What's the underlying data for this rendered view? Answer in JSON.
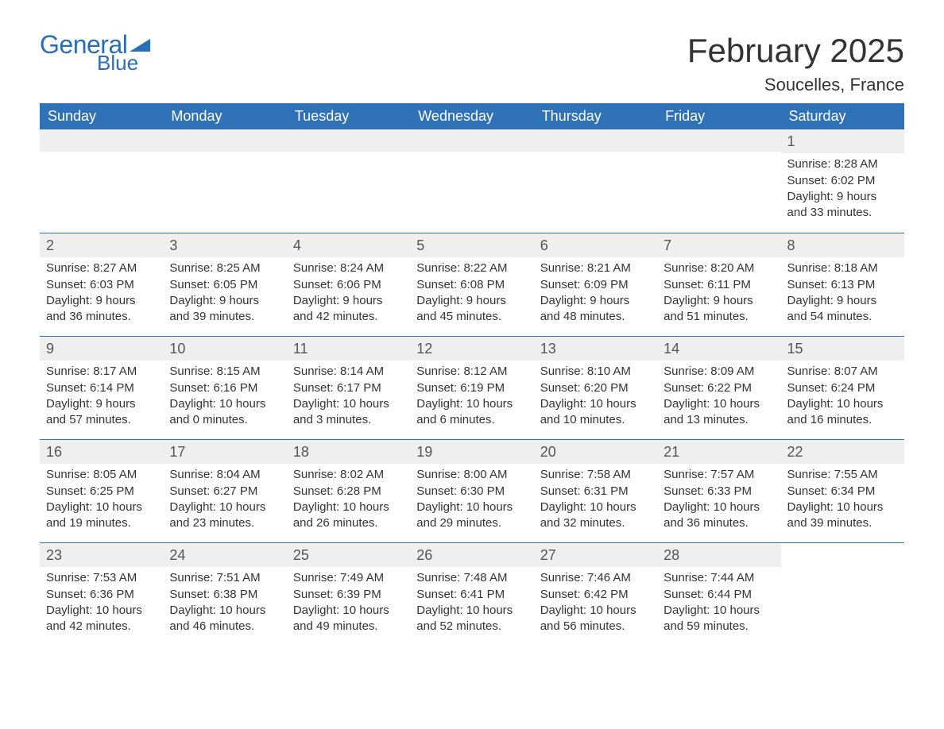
{
  "logo": {
    "text_top": "General",
    "text_bottom": "Blue",
    "triangle_color": "#2a6eb8",
    "text_color": "#2a6eb8"
  },
  "title": "February 2025",
  "location": "Soucelles, France",
  "header_bg": "#3072b8",
  "header_text_color": "#ffffff",
  "daynum_bg": "#efefef",
  "row_border_color": "#3072b8",
  "text_color": "#333333",
  "title_fontsize": 42,
  "location_fontsize": 22,
  "weekday_fontsize": 18,
  "daynum_fontsize": 18,
  "body_fontsize": 15,
  "weekdays": [
    "Sunday",
    "Monday",
    "Tuesday",
    "Wednesday",
    "Thursday",
    "Friday",
    "Saturday"
  ],
  "days": [
    {
      "n": "1",
      "sunrise": "8:28 AM",
      "sunset": "6:02 PM",
      "dl": "9 hours and 33 minutes."
    },
    {
      "n": "2",
      "sunrise": "8:27 AM",
      "sunset": "6:03 PM",
      "dl": "9 hours and 36 minutes."
    },
    {
      "n": "3",
      "sunrise": "8:25 AM",
      "sunset": "6:05 PM",
      "dl": "9 hours and 39 minutes."
    },
    {
      "n": "4",
      "sunrise": "8:24 AM",
      "sunset": "6:06 PM",
      "dl": "9 hours and 42 minutes."
    },
    {
      "n": "5",
      "sunrise": "8:22 AM",
      "sunset": "6:08 PM",
      "dl": "9 hours and 45 minutes."
    },
    {
      "n": "6",
      "sunrise": "8:21 AM",
      "sunset": "6:09 PM",
      "dl": "9 hours and 48 minutes."
    },
    {
      "n": "7",
      "sunrise": "8:20 AM",
      "sunset": "6:11 PM",
      "dl": "9 hours and 51 minutes."
    },
    {
      "n": "8",
      "sunrise": "8:18 AM",
      "sunset": "6:13 PM",
      "dl": "9 hours and 54 minutes."
    },
    {
      "n": "9",
      "sunrise": "8:17 AM",
      "sunset": "6:14 PM",
      "dl": "9 hours and 57 minutes."
    },
    {
      "n": "10",
      "sunrise": "8:15 AM",
      "sunset": "6:16 PM",
      "dl": "10 hours and 0 minutes."
    },
    {
      "n": "11",
      "sunrise": "8:14 AM",
      "sunset": "6:17 PM",
      "dl": "10 hours and 3 minutes."
    },
    {
      "n": "12",
      "sunrise": "8:12 AM",
      "sunset": "6:19 PM",
      "dl": "10 hours and 6 minutes."
    },
    {
      "n": "13",
      "sunrise": "8:10 AM",
      "sunset": "6:20 PM",
      "dl": "10 hours and 10 minutes."
    },
    {
      "n": "14",
      "sunrise": "8:09 AM",
      "sunset": "6:22 PM",
      "dl": "10 hours and 13 minutes."
    },
    {
      "n": "15",
      "sunrise": "8:07 AM",
      "sunset": "6:24 PM",
      "dl": "10 hours and 16 minutes."
    },
    {
      "n": "16",
      "sunrise": "8:05 AM",
      "sunset": "6:25 PM",
      "dl": "10 hours and 19 minutes."
    },
    {
      "n": "17",
      "sunrise": "8:04 AM",
      "sunset": "6:27 PM",
      "dl": "10 hours and 23 minutes."
    },
    {
      "n": "18",
      "sunrise": "8:02 AM",
      "sunset": "6:28 PM",
      "dl": "10 hours and 26 minutes."
    },
    {
      "n": "19",
      "sunrise": "8:00 AM",
      "sunset": "6:30 PM",
      "dl": "10 hours and 29 minutes."
    },
    {
      "n": "20",
      "sunrise": "7:58 AM",
      "sunset": "6:31 PM",
      "dl": "10 hours and 32 minutes."
    },
    {
      "n": "21",
      "sunrise": "7:57 AM",
      "sunset": "6:33 PM",
      "dl": "10 hours and 36 minutes."
    },
    {
      "n": "22",
      "sunrise": "7:55 AM",
      "sunset": "6:34 PM",
      "dl": "10 hours and 39 minutes."
    },
    {
      "n": "23",
      "sunrise": "7:53 AM",
      "sunset": "6:36 PM",
      "dl": "10 hours and 42 minutes."
    },
    {
      "n": "24",
      "sunrise": "7:51 AM",
      "sunset": "6:38 PM",
      "dl": "10 hours and 46 minutes."
    },
    {
      "n": "25",
      "sunrise": "7:49 AM",
      "sunset": "6:39 PM",
      "dl": "10 hours and 49 minutes."
    },
    {
      "n": "26",
      "sunrise": "7:48 AM",
      "sunset": "6:41 PM",
      "dl": "10 hours and 52 minutes."
    },
    {
      "n": "27",
      "sunrise": "7:46 AM",
      "sunset": "6:42 PM",
      "dl": "10 hours and 56 minutes."
    },
    {
      "n": "28",
      "sunrise": "7:44 AM",
      "sunset": "6:44 PM",
      "dl": "10 hours and 59 minutes."
    }
  ],
  "labels": {
    "sunrise": "Sunrise:",
    "sunset": "Sunset:",
    "daylight": "Daylight:"
  },
  "first_day_column": 6,
  "total_columns": 7
}
